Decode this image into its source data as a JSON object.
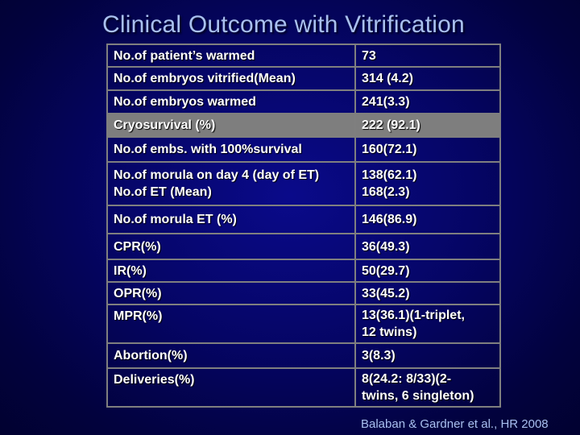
{
  "title": "Clinical Outcome with Vitrification",
  "rows": [
    {
      "label": "No.of patient’s warmed",
      "value": "73"
    },
    {
      "label": "No.of embryos vitrified(Mean)",
      "value": "314 (4.2)"
    },
    {
      "label": "No.of embryos warmed",
      "value": "241(3.3)"
    },
    {
      "label": "Cryosurvival (%)",
      "value": "222 (92.1)"
    },
    {
      "label": "No.of embs. with 100%survival",
      "value": "160(72.1)"
    },
    {
      "label_line1": "No.of morula on day 4 (day of ET)",
      "label_line2": "No.of ET (Mean)",
      "value_line1": "138(62.1)",
      "value_line2": "168(2.3)"
    },
    {
      "label": "No.of morula ET (%)",
      "value": "146(86.9)"
    },
    {
      "label": "CPR(%)",
      "value": "36(49.3)"
    },
    {
      "label": "IR(%)",
      "value": "50(29.7)"
    },
    {
      "label": "OPR(%)",
      "value": "33(45.2)"
    },
    {
      "label": "MPR(%)",
      "value_line1": "13(36.1)(1-triplet,",
      "value_line2": "12 twins)"
    },
    {
      "label": "Abortion(%)",
      "value": "3(8.3)"
    },
    {
      "label": "Deliveries(%)",
      "value_line1": "8(24.2: 8/33)(2-",
      "value_line2": "twins, 6 singleton)"
    }
  ],
  "citation": "Balaban  & Gardner et al., HR 2008",
  "colors": {
    "background": "#05056a",
    "title": "#a9c0ee",
    "highlight_row": "#7e7e7e",
    "border": "#7f7f7f",
    "text": "#ffffff"
  }
}
